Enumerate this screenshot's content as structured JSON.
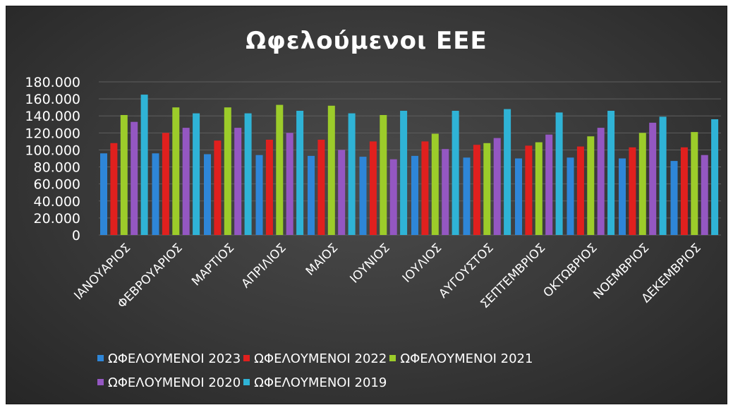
{
  "colors": {
    "series": [
      "#2e86d8",
      "#e0201e",
      "#9ccc2a",
      "#9457c2",
      "#2fb3d6"
    ]
  },
  "chart_data": {
    "type": "bar",
    "title": "Ωφελούμενοι ΕΕΕ",
    "xlabel": "",
    "ylabel": "",
    "ylim": [
      0,
      180000
    ],
    "yticks": [
      "0",
      "20.000",
      "40.000",
      "60.000",
      "80.000",
      "100.000",
      "120.000",
      "140.000",
      "160.000",
      "180.000"
    ],
    "grid": true,
    "legend_position": "bottom",
    "categories": [
      "ΙΑΝΟΥΑΡΙΟΣ",
      "ΦΕΒΡΟΥΑΡΙΟΣ",
      "ΜΑΡΤΙΟΣ",
      "ΑΠΡΙΛΙΟΣ",
      "ΜΑΙΟΣ",
      "ΙΟΥΝΙΟΣ",
      "ΙΟΥΛΙΟΣ",
      "ΑΥΓΟΥΣΤΟΣ",
      "ΣΕΠΤΕΜΒΡΙΟΣ",
      "ΟΚΤΩΒΡΙΟΣ",
      "ΝΟΕΜΒΡΙΟΣ",
      "ΔΕΚΕΜΒΡΙΟΣ"
    ],
    "series": [
      {
        "name": "ΩΦΕΛΟΥΜΕΝΟΙ 2023",
        "values": [
          96000,
          96000,
          95000,
          94000,
          93000,
          92000,
          93000,
          91000,
          90000,
          91000,
          90000,
          87000
        ]
      },
      {
        "name": "ΩΦΕΛΟΥΜΕΝΟΙ 2022",
        "values": [
          108000,
          120000,
          111000,
          112000,
          112000,
          110000,
          110000,
          106000,
          105000,
          104000,
          103000,
          103000
        ]
      },
      {
        "name": "ΩΦΕΛΟΥΜΕΝΟΙ 2021",
        "values": [
          141000,
          150000,
          150000,
          153000,
          152000,
          141000,
          119000,
          108000,
          109000,
          116000,
          120000,
          121000
        ]
      },
      {
        "name": "ΩΦΕΛΟΥΜΕΝΟΙ 2020",
        "values": [
          133000,
          126000,
          126000,
          120000,
          100000,
          89000,
          101000,
          114000,
          118000,
          126000,
          132000,
          94000
        ]
      },
      {
        "name": "ΩΦΕΛΟΥΜΕΝΟΙ 2019",
        "values": [
          165000,
          143000,
          143000,
          146000,
          143000,
          146000,
          146000,
          148000,
          144000,
          146000,
          139000,
          136000
        ]
      }
    ]
  }
}
